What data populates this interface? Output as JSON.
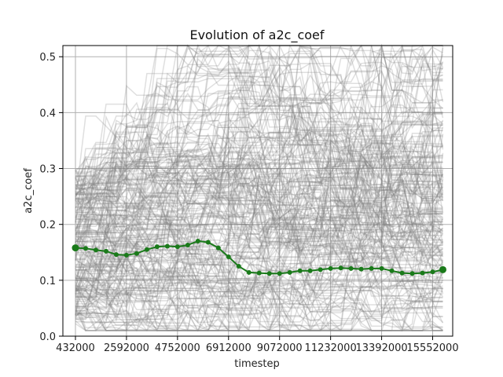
{
  "chart_data": {
    "type": "line",
    "title": "Evolution of a2c_coef",
    "xlabel": "timestep",
    "ylabel": "a2c_coef",
    "xlim": [
      -100000,
      16400000
    ],
    "ylim": [
      0,
      0.52
    ],
    "grid": true,
    "xticks": [
      432000,
      2592000,
      4752000,
      6912000,
      9072000,
      11232000,
      13392000,
      15552000
    ],
    "xtick_labels": [
      "432000",
      "2592000",
      "4752000",
      "6912000",
      "9072000",
      "11232000",
      "13392000",
      "15552000"
    ],
    "yticks": [
      0.0,
      0.1,
      0.2,
      0.3,
      0.4,
      0.5
    ],
    "ytick_labels": [
      "0.0",
      "0.1",
      "0.2",
      "0.3",
      "0.4",
      "0.5"
    ],
    "background_traces": {
      "count": 220,
      "color": "#808080",
      "value_range": [
        0.01,
        0.52
      ]
    },
    "series": [
      {
        "color": "#1a7a1a",
        "x": [
          432000,
          864000,
          1296000,
          1728000,
          2160000,
          2592000,
          3024000,
          3456000,
          3888000,
          4320000,
          4752000,
          5184000,
          5616000,
          6048000,
          6480000,
          6912000,
          7344000,
          7776000,
          8208000,
          8640000,
          9072000,
          9504000,
          9936000,
          10368000,
          10800000,
          11232000,
          11664000,
          12096000,
          12528000,
          12960000,
          13392000,
          13824000,
          14256000,
          14688000,
          15120000,
          15552000,
          15984000
        ],
        "values": [
          0.158,
          0.157,
          0.154,
          0.152,
          0.146,
          0.145,
          0.148,
          0.155,
          0.16,
          0.161,
          0.16,
          0.163,
          0.17,
          0.168,
          0.158,
          0.142,
          0.125,
          0.114,
          0.113,
          0.112,
          0.112,
          0.114,
          0.117,
          0.117,
          0.119,
          0.121,
          0.122,
          0.121,
          0.12,
          0.121,
          0.121,
          0.117,
          0.113,
          0.112,
          0.113,
          0.115,
          0.119
        ]
      }
    ]
  }
}
